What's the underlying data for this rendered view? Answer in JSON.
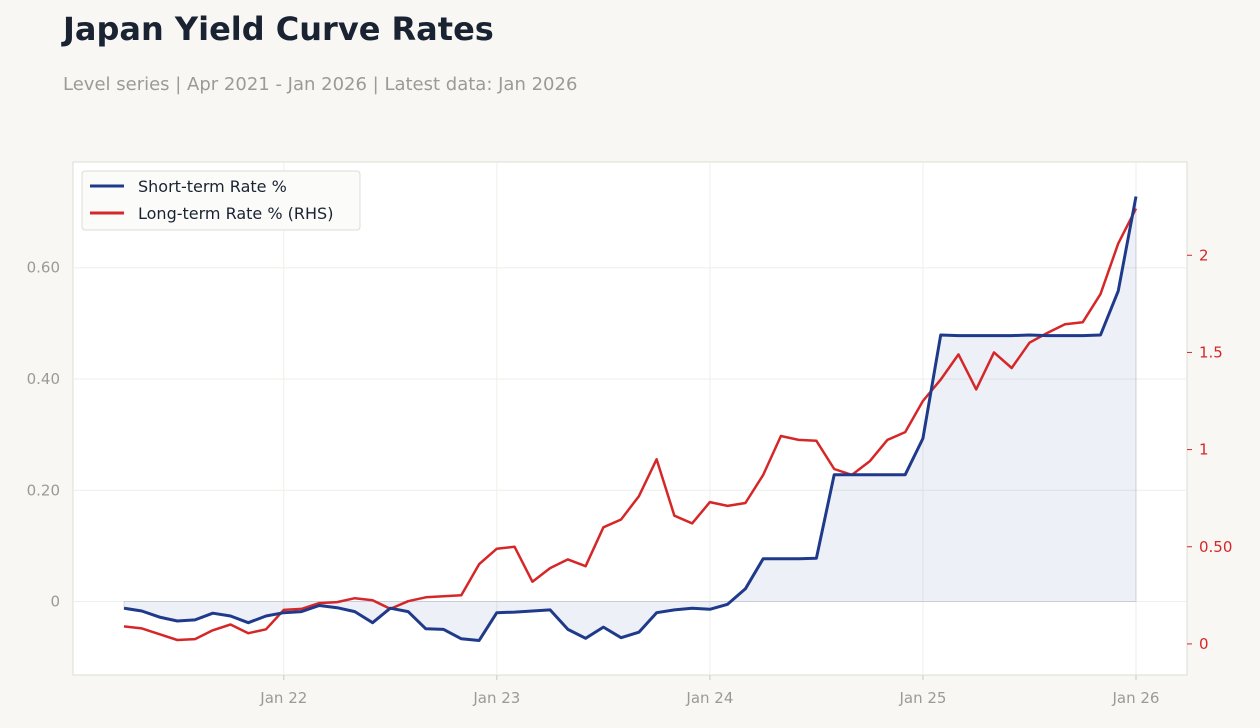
{
  "header": {
    "title": "Japan Yield Curve Rates",
    "subtitle": "Level series | Apr 2021 - Jan 2026 | Latest data: Jan 2026"
  },
  "colors": {
    "short": "#1f3a8a",
    "long": "#d62728",
    "fill": "rgba(31,58,138,0.08)",
    "grid": "#eeeeea",
    "frame": "#ddddd5"
  },
  "chart_data": {
    "type": "line",
    "x": [
      "2021-04",
      "2021-05",
      "2021-06",
      "2021-07",
      "2021-08",
      "2021-09",
      "2021-10",
      "2021-11",
      "2021-12",
      "2022-01",
      "2022-02",
      "2022-03",
      "2022-04",
      "2022-05",
      "2022-06",
      "2022-07",
      "2022-08",
      "2022-09",
      "2022-10",
      "2022-11",
      "2022-12",
      "2023-01",
      "2023-02",
      "2023-03",
      "2023-04",
      "2023-05",
      "2023-06",
      "2023-07",
      "2023-08",
      "2023-09",
      "2023-10",
      "2023-11",
      "2023-12",
      "2024-01",
      "2024-02",
      "2024-03",
      "2024-04",
      "2024-05",
      "2024-06",
      "2024-07",
      "2024-08",
      "2024-09",
      "2024-10",
      "2024-11",
      "2024-12",
      "2025-01",
      "2025-02",
      "2025-03",
      "2025-04",
      "2025-05",
      "2025-06",
      "2025-07",
      "2025-08",
      "2025-09",
      "2025-10",
      "2025-11",
      "2025-12",
      "2026-01"
    ],
    "series": [
      {
        "name": "Short-term Rate %",
        "axis": "left",
        "values": [
          -0.012,
          -0.017,
          -0.028,
          -0.035,
          -0.033,
          -0.021,
          -0.026,
          -0.038,
          -0.026,
          -0.02,
          -0.018,
          -0.007,
          -0.011,
          -0.018,
          -0.038,
          -0.012,
          -0.018,
          -0.049,
          -0.05,
          -0.067,
          -0.07,
          -0.02,
          -0.019,
          -0.017,
          -0.015,
          -0.05,
          -0.066,
          -0.046,
          -0.065,
          -0.055,
          -0.02,
          -0.015,
          -0.012,
          -0.014,
          -0.005,
          0.023,
          0.077,
          0.077,
          0.077,
          0.078,
          0.228,
          0.228,
          0.228,
          0.228,
          0.228,
          0.293,
          0.479,
          0.478,
          0.478,
          0.478,
          0.478,
          0.479,
          0.478,
          0.478,
          0.478,
          0.479,
          0.558,
          0.728
        ]
      },
      {
        "name": "Long-term Rate % (RHS)",
        "axis": "right",
        "values": [
          0.09,
          0.08,
          0.05,
          0.02,
          0.025,
          0.07,
          0.1,
          0.055,
          0.075,
          0.175,
          0.18,
          0.21,
          0.215,
          0.235,
          0.225,
          0.18,
          0.22,
          0.24,
          0.245,
          0.25,
          0.41,
          0.49,
          0.5,
          0.32,
          0.39,
          0.435,
          0.4,
          0.6,
          0.64,
          0.76,
          0.95,
          0.66,
          0.62,
          0.73,
          0.71,
          0.725,
          0.87,
          1.07,
          1.05,
          1.045,
          0.9,
          0.87,
          0.94,
          1.05,
          1.09,
          1.25,
          1.36,
          1.49,
          1.31,
          1.5,
          1.42,
          1.55,
          1.6,
          1.645,
          1.655,
          1.8,
          2.06,
          2.24
        ]
      }
    ],
    "x_ticks": [
      "Jan 22",
      "Jan 23",
      "Jan 24",
      "Jan 25",
      "Jan 26"
    ],
    "y_left_ticks": [
      "0",
      "0.20",
      "0.40",
      "0.60"
    ],
    "y_right_ticks": [
      "0",
      "0.50",
      "1",
      "1.5",
      "2"
    ],
    "y_left_range": [
      -0.132,
      0.79
    ],
    "y_right_range": [
      -0.16,
      2.48
    ],
    "legend_position": "top-left",
    "grid": true
  }
}
